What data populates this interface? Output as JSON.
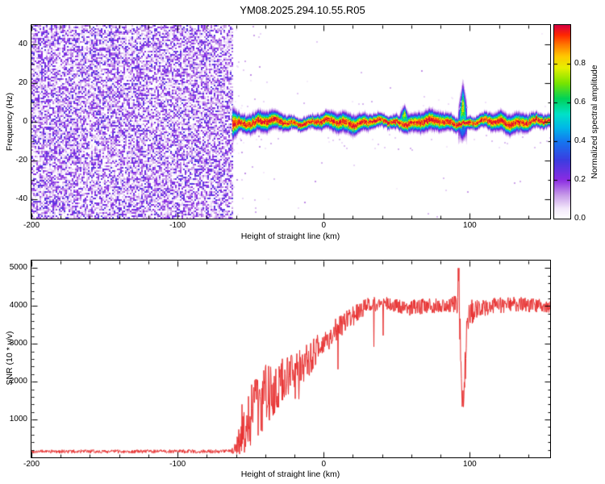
{
  "title": "YM08.2025.294.10.55.R05",
  "background": "#ffffff",
  "axis_color": "#000000",
  "chart_data": [
    {
      "type": "heatmap",
      "name": "range-doppler-spectrogram",
      "xlabel": "Height of straight line (km)",
      "ylabel": "Frequency (Hz)",
      "xlim": [
        -200,
        155
      ],
      "ylim": [
        -50,
        50
      ],
      "xtick_values": [
        -200,
        -100,
        0,
        100
      ],
      "xtick_labels": [
        "-200",
        "-100",
        "0",
        "100"
      ],
      "x_minor_step": 20,
      "ytick_values": [
        -40,
        -20,
        0,
        20,
        40
      ],
      "ytick_labels": [
        "-40",
        "-20",
        "0",
        "20",
        "40"
      ],
      "y_minor_step": 10,
      "colorbar": {
        "label": "Normalized spectral amplitude",
        "tick_values": [
          0,
          0.2,
          0.4,
          0.6,
          0.8
        ],
        "tick_labels": [
          "0.0",
          "0.2",
          "0.4",
          "0.6",
          "0.8"
        ],
        "range": [
          0,
          1
        ]
      },
      "colormap": [
        [
          0.0,
          "#ffffff"
        ],
        [
          0.05,
          "#f3e8fb"
        ],
        [
          0.12,
          "#c79be8"
        ],
        [
          0.2,
          "#8a2be2"
        ],
        [
          0.3,
          "#3c3ce0"
        ],
        [
          0.4,
          "#1478f0"
        ],
        [
          0.47,
          "#00b8e8"
        ],
        [
          0.54,
          "#00e2c8"
        ],
        [
          0.62,
          "#00d258"
        ],
        [
          0.7,
          "#78e400"
        ],
        [
          0.78,
          "#e6f000"
        ],
        [
          0.84,
          "#ffc800"
        ],
        [
          0.9,
          "#ff7800"
        ],
        [
          0.95,
          "#ff2800"
        ],
        [
          1.0,
          "#d80040"
        ]
      ],
      "noise_region": {
        "x_range": [
          -200,
          -62
        ],
        "max_value": 0.28
      },
      "echo_band": {
        "x_range": [
          -62,
          155
        ],
        "center_hz": 0,
        "core_half_width_hz": 2.5,
        "peak_value": 1.0,
        "features": [
          {
            "x": 55,
            "type": "bulge",
            "extent_hz": 11
          },
          {
            "x": 95,
            "type": "spike",
            "extent_hz": 20
          }
        ]
      }
    },
    {
      "type": "line",
      "name": "snr-profile",
      "xlabel": "Height of straight line (km)",
      "ylabel": "SNR (10 * v/v)",
      "xlim": [
        -200,
        155
      ],
      "ylim": [
        0,
        5200
      ],
      "xtick_values": [
        -200,
        -100,
        0,
        100
      ],
      "xtick_labels": [
        "-200",
        "-100",
        "0",
        "100"
      ],
      "x_minor_step": 20,
      "ytick_values": [
        1000,
        2000,
        3000,
        4000,
        5000
      ],
      "ytick_labels": [
        "1000",
        "2000",
        "3000",
        "4000",
        "5000"
      ],
      "y_minor_step": 200,
      "series": [
        {
          "name": "SNR",
          "color": "#e83030",
          "envelope_x": [
            -200,
            -63,
            -60,
            -57,
            -53,
            -49,
            -45,
            -41,
            -37,
            -33,
            -29,
            -25,
            -20,
            -15,
            -10,
            -5,
            0,
            5,
            10,
            15,
            20,
            25,
            30,
            40,
            50,
            60,
            70,
            80,
            88,
            91,
            92.5,
            94,
            95.5,
            97,
            99,
            105,
            115,
            130,
            150,
            155
          ],
          "envelope_mean": [
            155,
            160,
            250,
            500,
            900,
            1300,
            1500,
            1600,
            1750,
            1900,
            2000,
            2100,
            2250,
            2400,
            2600,
            2850,
            3050,
            3250,
            3450,
            3600,
            3750,
            3900,
            4000,
            4050,
            4000,
            3950,
            4000,
            4000,
            4050,
            4150,
            4300,
            1700,
            1500,
            2600,
            3800,
            3950,
            4000,
            4050,
            4000,
            3980
          ],
          "envelope_noise": [
            45,
            50,
            180,
            450,
            800,
            950,
            950,
            900,
            800,
            700,
            600,
            550,
            500,
            480,
            450,
            420,
            380,
            350,
            330,
            300,
            280,
            250,
            220,
            200,
            200,
            220,
            200,
            200,
            200,
            350,
            650,
            500,
            350,
            900,
            400,
            250,
            220,
            200,
            180,
            180
          ],
          "spikes": [
            {
              "x": 92.3,
              "y": 5000
            },
            {
              "x": -56,
              "y": 1400
            }
          ]
        }
      ]
    }
  ]
}
